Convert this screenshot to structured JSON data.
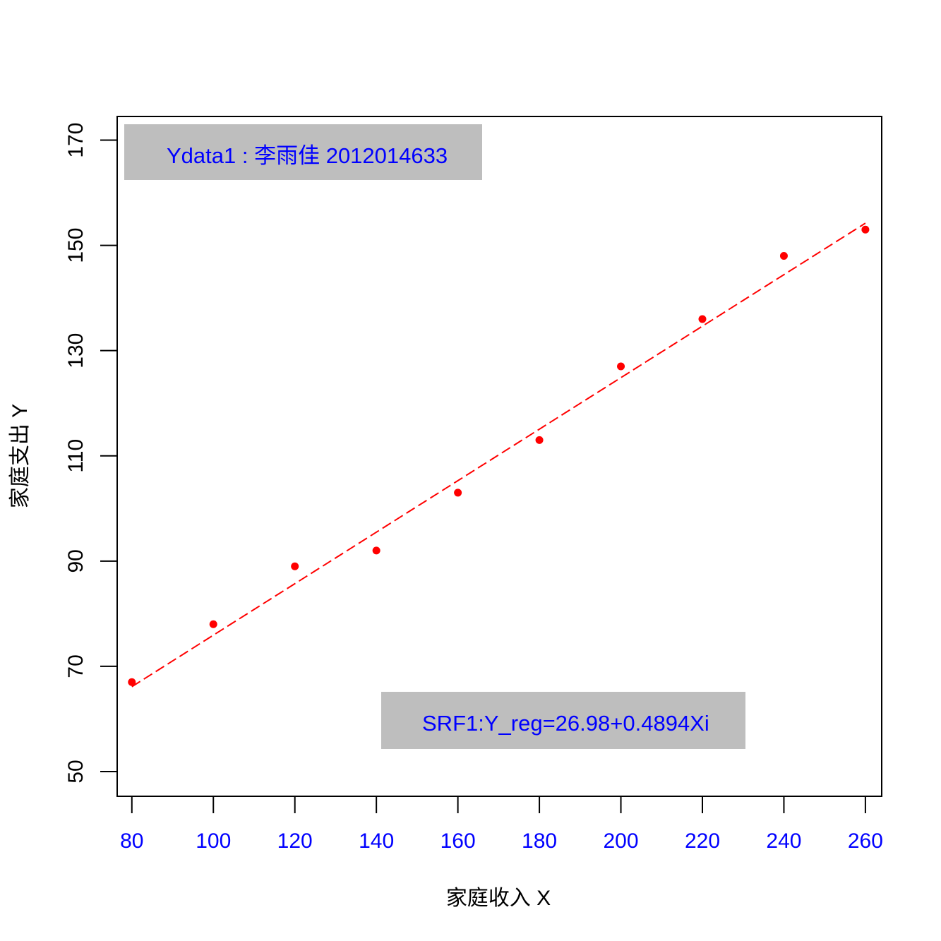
{
  "chart_data": {
    "type": "scatter",
    "title": "",
    "xlabel": "家庭收入 X",
    "ylabel": "家庭支出 Y",
    "xlim": [
      76.4,
      264.0
    ],
    "ylim": [
      45.3,
      174.5
    ],
    "x_ticks": [
      80,
      100,
      120,
      140,
      160,
      180,
      200,
      220,
      240,
      260
    ],
    "y_ticks": [
      50,
      70,
      90,
      110,
      130,
      150,
      170
    ],
    "grid": false,
    "series": [
      {
        "values": [
          {
            "x": 80,
            "y": 67
          },
          {
            "x": 100,
            "y": 78
          },
          {
            "x": 120,
            "y": 89
          },
          {
            "x": 140,
            "y": 92
          },
          {
            "x": 160,
            "y": 103
          },
          {
            "x": 180,
            "y": 113
          },
          {
            "x": 200,
            "y": 127
          },
          {
            "x": 220,
            "y": 136
          },
          {
            "x": 240,
            "y": 148
          },
          {
            "x": 260,
            "y": 153
          }
        ]
      }
    ],
    "regression": {
      "intercept": 26.98,
      "slope": 0.4894,
      "style": "dashed"
    },
    "annotations": [
      {
        "text": "Ydata1 : 李雨佳 2012014633",
        "placement": "top-left"
      },
      {
        "text": "SRF1:Y_reg=26.98+0.4894Xi",
        "placement": "bottom-right"
      }
    ],
    "colors": {
      "points": "#ff0000",
      "line": "#ff0000",
      "x_tick_labels": "#0000ff",
      "annotation_text": "#0000ff",
      "annotation_fill": "#bebebe",
      "axes": "#000000"
    }
  }
}
